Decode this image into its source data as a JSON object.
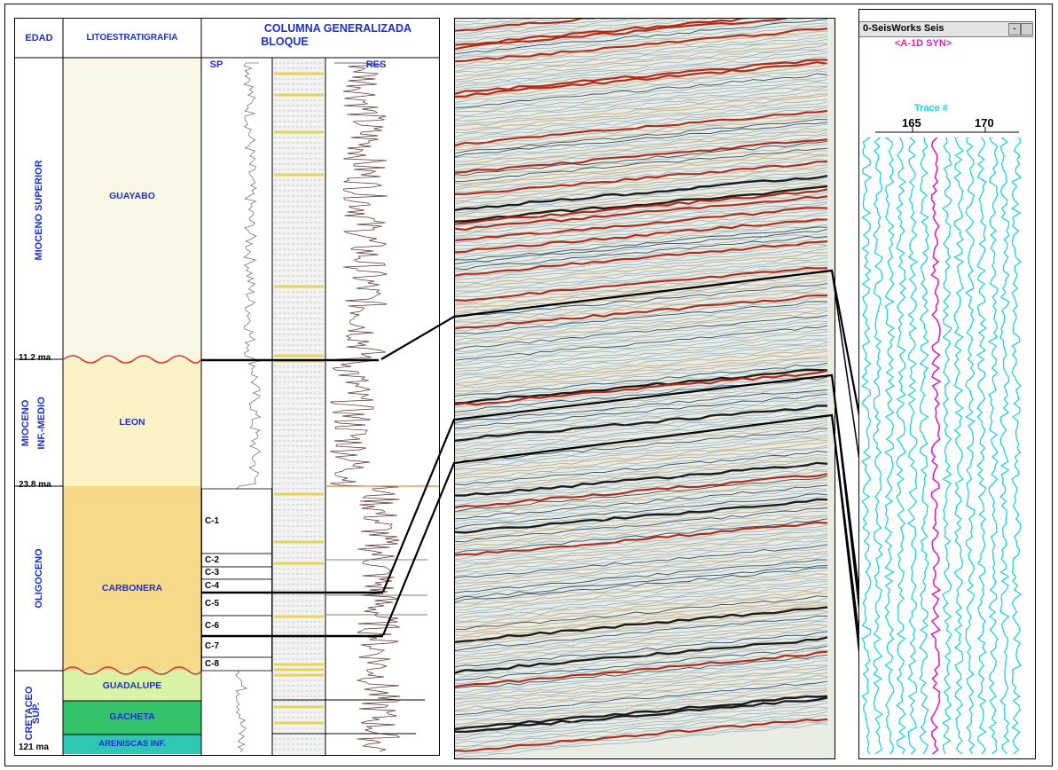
{
  "headers": {
    "edad": "EDAD",
    "lito": "LITOESTRATIGRAFIA",
    "columna_line1": "COLUMNA GENERALIZADA",
    "columna_line2": "BLOQUE",
    "sp": "SP",
    "res": "RES"
  },
  "eras": {
    "mioceno_superior": "MIOCENO SUPERIOR",
    "mioceno_medio_1": "MIOCENO",
    "mioceno_medio_2": "INF.-MEDIO",
    "oligoceno": "OLIGOCENO",
    "cretaceo_1": "CRETACEO",
    "cretaceo_2": "SUP."
  },
  "formations": {
    "guayabo": "GUAYABO",
    "leon": "LEON",
    "carbonera": "CARBONERA",
    "guadalupe": "GUADALUPE",
    "gacheta": "GACHETA",
    "areniscas": "ARENISCAS INF."
  },
  "ages": {
    "a1": "11.2 ma",
    "a2": "23.8 ma",
    "a3": "121 ma"
  },
  "members": [
    "C-1",
    "C-2",
    "C-3",
    "C-4",
    "C-5",
    "C-6",
    "C-7",
    "C-8"
  ],
  "synthetic": {
    "title": "0-SeisWorks  Seis",
    "subtitle": "<A-1D SYN>",
    "trace_label": "Trace #",
    "trace_165": "165",
    "trace_170": "170"
  },
  "colors": {
    "header_blue": "#1a2fd6",
    "guayabo_fill": "#f9f6e6",
    "leon_fill": "#fbf2c6",
    "carbonera_fill": "#f6d98a",
    "guadalupe_fill": "#d9f2a6",
    "gacheta_fill": "#34c36a",
    "areniscas_fill": "#2fc7b4",
    "unconformity_red": "#e03030",
    "synthetic_cyan": "#19d3e6",
    "synthetic_magenta": "#e020c0"
  }
}
